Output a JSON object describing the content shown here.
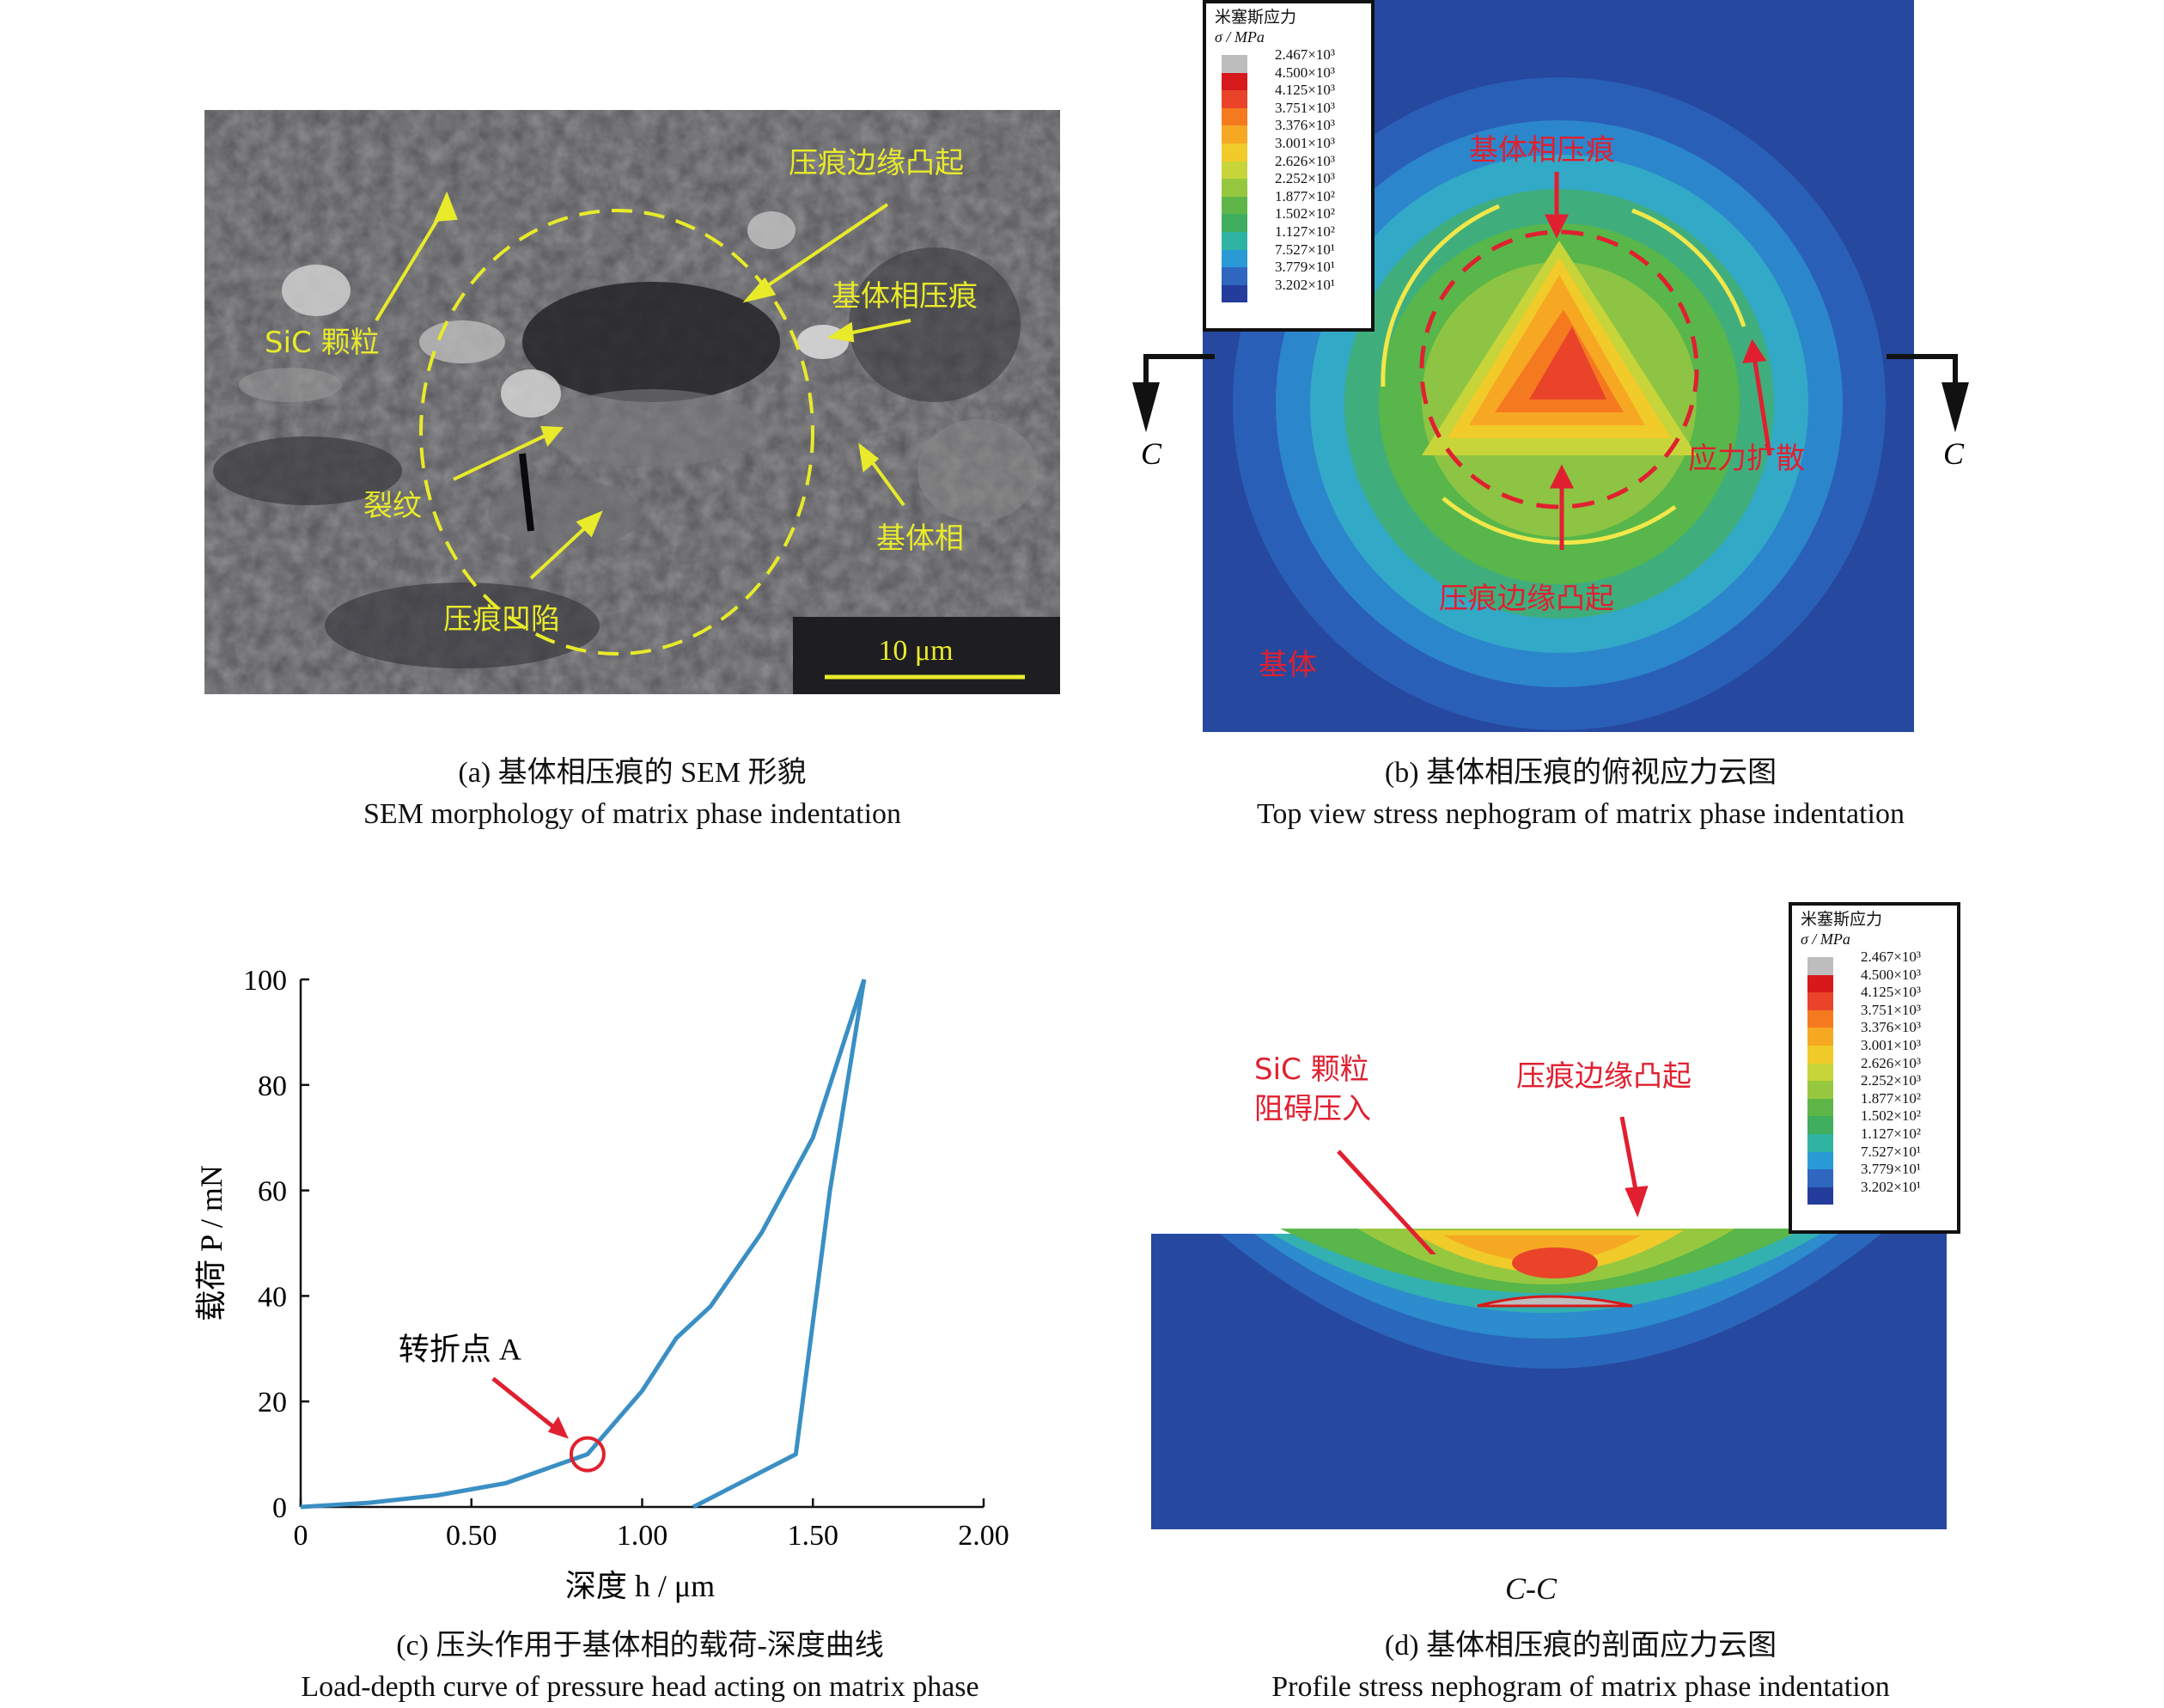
{
  "panel_a": {
    "labels": {
      "edge_bulge": "压痕边缘凸起",
      "sic_particle": "SiC 颗粒",
      "matrix_indent": "基体相压痕",
      "crack": "裂纹",
      "matrix": "基体相",
      "indent_dent": "压痕凹陷"
    },
    "scale_bar": "10 μm",
    "caption_cn": "(a) 基体相压痕的 SEM 形貌",
    "caption_en": "SEM morphology of matrix phase indentation"
  },
  "panel_b": {
    "legend_title": "米塞斯应力",
    "legend_unit": "σ / MPa",
    "legend_values": [
      "2.467×10³",
      "4.500×10³",
      "4.125×10³",
      "3.751×10³",
      "3.376×10³",
      "3.001×10³",
      "2.626×10³",
      "2.252×10³",
      "1.877×10²",
      "1.502×10²",
      "1.127×10²",
      "7.527×10¹",
      "3.779×10¹",
      "3.202×10¹"
    ],
    "legend_colors": [
      "#bdbdbd",
      "#d7191c",
      "#e9432a",
      "#f57a1f",
      "#f7a823",
      "#f1cb29",
      "#c8d53a",
      "#96c83f",
      "#5fb648",
      "#3fae5e",
      "#2fb3a2",
      "#2a9ad6",
      "#2e66c0",
      "#243c9c"
    ],
    "labels": {
      "indent": "基体相压痕",
      "spread": "应力扩散",
      "edge_bulge": "压痕边缘凸起",
      "matrix": "基体"
    },
    "section_label": "C",
    "caption_cn": "(b) 基体相压痕的俯视应力云图",
    "caption_en": "Top view stress nephogram of matrix phase indentation"
  },
  "panel_c": {
    "chart_data": {
      "type": "line",
      "xlabel": "深度 h / μm",
      "ylabel": "载荷 P / mN",
      "xlim": [
        0,
        2.0
      ],
      "ylim": [
        0,
        100
      ],
      "x_ticks": [
        "0",
        "0.50",
        "1.00",
        "1.50",
        "2.00"
      ],
      "y_ticks": [
        "0",
        "20",
        "40",
        "60",
        "80",
        "100"
      ],
      "series": [
        {
          "x": [
            0,
            0.2,
            0.4,
            0.6,
            0.84,
            1.0,
            1.1,
            1.2,
            1.35,
            1.5,
            1.65
          ],
          "y": [
            0,
            0.8,
            2.2,
            4.5,
            10,
            22,
            32,
            38,
            52,
            70,
            100
          ]
        },
        {
          "x": [
            1.65,
            1.55,
            1.5,
            1.45,
            1.3,
            1.15
          ],
          "y": [
            100,
            60,
            35,
            10,
            5,
            0
          ]
        }
      ],
      "annotation": {
        "text": "转折点 A",
        "x": 0.84,
        "y": 10
      }
    },
    "caption_cn": "(c) 压头作用于基体相的载荷-深度曲线",
    "caption_en": "Load-depth curve of pressure head acting on matrix phase"
  },
  "panel_d": {
    "labels": {
      "sic_line1": "SiC 颗粒",
      "sic_line2": "阻碍压入",
      "edge_bulge": "压痕边缘凸起"
    },
    "section_caption": "C-C",
    "caption_cn": "(d) 基体相压痕的剖面应力云图",
    "caption_en": "Profile stress nephogram of matrix phase indentation"
  }
}
